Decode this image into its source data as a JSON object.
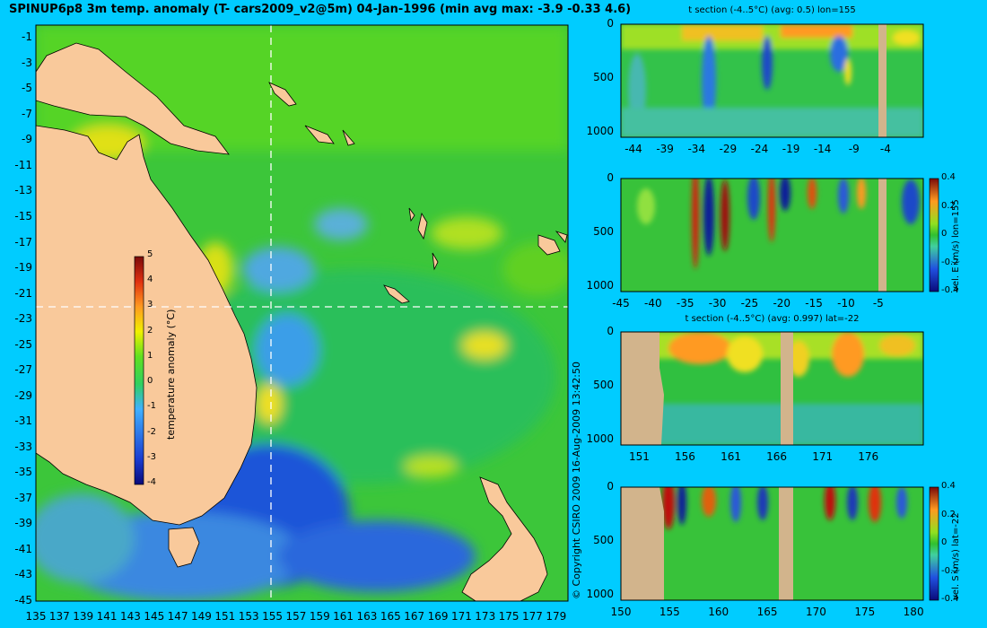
{
  "title": "SPINUP6p8 3m temp. anomaly (T- cars2009_v2@5m) 04-Jan-1996 (min avg max: -3.9 -0.33 4.6)",
  "copyright": "© Copyright CSIRO 2009   16-Aug-2009 13:42:50",
  "colors": {
    "background": "#00ccff",
    "land": "#f9c99b",
    "section_land": "#d2b48c"
  },
  "chart_data": [
    {
      "type": "heatmap",
      "name": "map",
      "title": "",
      "xticks": [
        "135",
        "137",
        "139",
        "141",
        "143",
        "145",
        "147",
        "149",
        "151",
        "153",
        "155",
        "157",
        "159",
        "161",
        "163",
        "165",
        "167",
        "169",
        "171",
        "173",
        "175",
        "177",
        "179"
      ],
      "yticks": [
        "-1",
        "-3",
        "-5",
        "-7",
        "-9",
        "-11",
        "-13",
        "-15",
        "-17",
        "-19",
        "-21",
        "-23",
        "-25",
        "-27",
        "-29",
        "-31",
        "-33",
        "-35",
        "-37",
        "-39",
        "-41",
        "-43",
        "-45"
      ],
      "xlim": [
        135,
        180
      ],
      "ylim": [
        -45,
        0
      ],
      "crosshair": {
        "lon": 155,
        "lat": -22
      },
      "colorbar": {
        "label": "temperature anomaly (°C)",
        "ticks": [
          "5",
          "4",
          "3",
          "2",
          "1",
          "0",
          "-1",
          "-2",
          "-3",
          "-4"
        ],
        "range": [
          -4,
          5
        ]
      }
    },
    {
      "type": "heatmap",
      "name": "t-section-lon155",
      "title": "t section (-4..5°C) (avg: 0.5) lon=155",
      "xticks": [
        "-44",
        "-39",
        "-34",
        "-29",
        "-24",
        "-19",
        "-14",
        "-9",
        "-4"
      ],
      "yticks": [
        "0",
        "500",
        "1000"
      ]
    },
    {
      "type": "heatmap",
      "name": "vel-e-lon155",
      "title": "",
      "xticks": [
        "-45",
        "-40",
        "-35",
        "-30",
        "-25",
        "-20",
        "-15",
        "-10",
        "-5"
      ],
      "yticks": [
        "0",
        "500",
        "1000"
      ],
      "colorbar": {
        "label": "vel. E (m/s) lon=155",
        "ticks": [
          "0.4",
          "0.2",
          "0",
          "-0.2",
          "-0.4"
        ],
        "range": [
          -0.4,
          0.4
        ]
      }
    },
    {
      "type": "heatmap",
      "name": "t-section-lat-22",
      "title": "t section (-4..5°C) (avg: 0.997) lat=-22",
      "xticks": [
        "151",
        "156",
        "161",
        "166",
        "171",
        "176"
      ],
      "yticks": [
        "0",
        "500",
        "1000"
      ]
    },
    {
      "type": "heatmap",
      "name": "vel-s-lat-22",
      "title": "",
      "xticks": [
        "150",
        "155",
        "160",
        "165",
        "170",
        "175",
        "180"
      ],
      "yticks": [
        "0",
        "500",
        "1000"
      ],
      "colorbar": {
        "label": "vel. S (m/s) lat=-22",
        "ticks": [
          "0.4",
          "0.2",
          "0",
          "-0.2",
          "-0.4"
        ],
        "range": [
          -0.4,
          0.4
        ]
      }
    }
  ]
}
